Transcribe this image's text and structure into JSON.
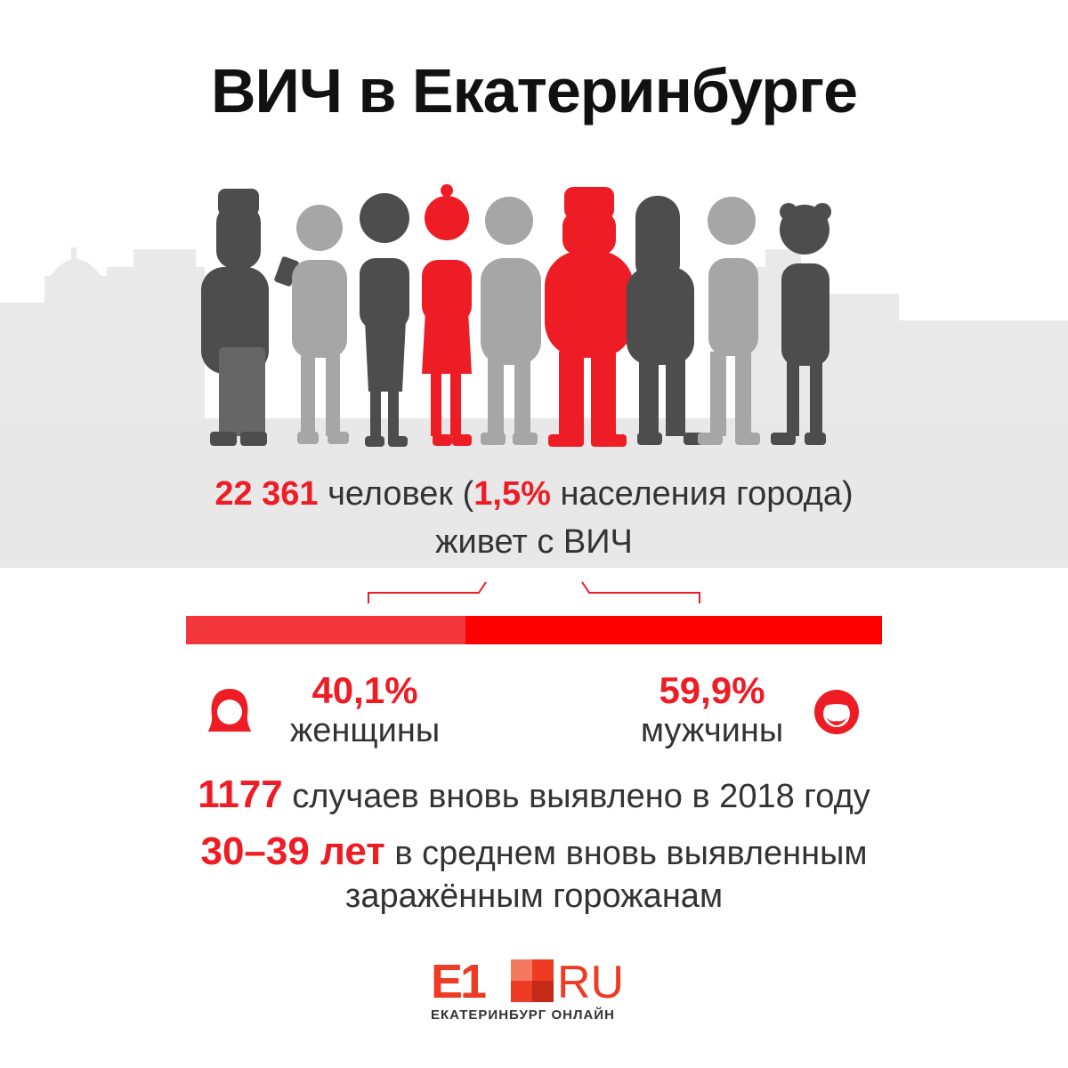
{
  "title": "ВИЧ в Екатеринбурге",
  "people": {
    "total": "22 361",
    "total_suffix": " человек (",
    "share": "1,5%",
    "share_suffix": " населения города)",
    "line2": "живет с ВИЧ"
  },
  "gender": {
    "women_pct_value": 40.1,
    "men_pct_value": 59.9,
    "women_pct": "40,1%",
    "women_label": "женщины",
    "men_pct": "59,9%",
    "men_label": "мужчины",
    "women_color": "#f2383a",
    "men_color": "#ff0000"
  },
  "stats": {
    "cases_value": "1177",
    "cases_text": " случаев вновь выявлено в 2018 году",
    "age_value": "30–39 лет",
    "age_text": " в среднем вновь выявленным",
    "age_text2": "заражённым горожанам"
  },
  "logo": {
    "e1": "E1",
    "ru": "RU",
    "subtitle": "ЕКАТЕРИНБУРГ ОНЛАЙН"
  },
  "colors": {
    "accent": "#ee1c25",
    "dark_figure": "#4d4d4d",
    "light_figure": "#a6a6a6",
    "skyline": "#e6e6e6"
  },
  "icons": {
    "women": "woman-face-icon",
    "men": "man-face-icon"
  }
}
